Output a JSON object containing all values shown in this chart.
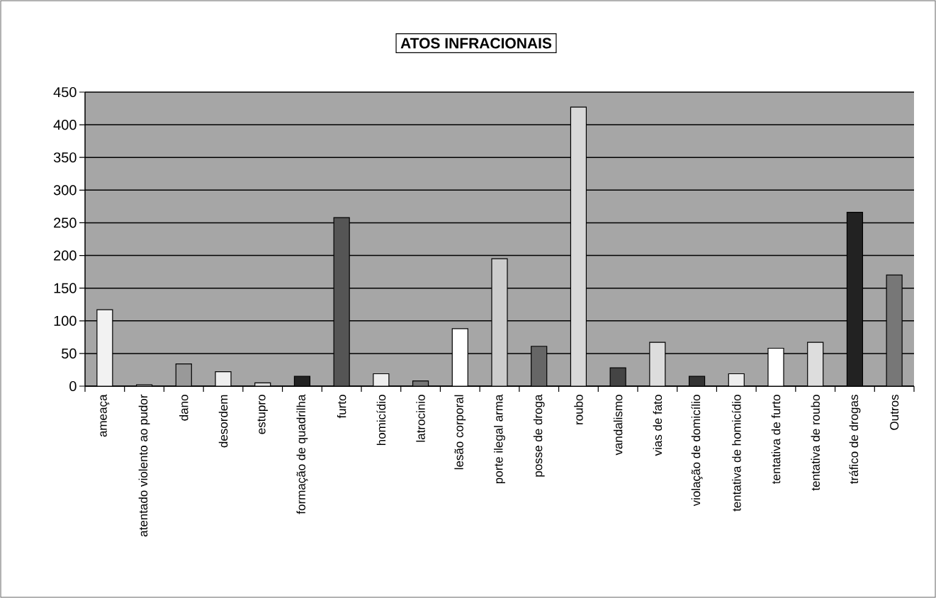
{
  "chart_data": {
    "type": "bar",
    "title": "ATOS INFRACIONAIS",
    "categories": [
      "ameaça",
      "atentado violento ao pudor",
      "dano",
      "desordem",
      "estupro",
      "formação de quadrilha",
      "furto",
      "homicídio",
      "latrocinio",
      "lesão corporal",
      "porte ilegal arma",
      "posse de droga",
      "roubo",
      "vandalismo",
      "vias de fato",
      "violação de domicílio",
      "tentativa de homicídio",
      "tentativa de furto",
      "tentativa de roubo",
      "tráfico de drogas",
      "Outros"
    ],
    "values": [
      117,
      2,
      34,
      22,
      5,
      15,
      258,
      19,
      8,
      88,
      195,
      61,
      427,
      28,
      67,
      15,
      19,
      58,
      67,
      266,
      170
    ],
    "colors": [
      "#f2f2f2",
      "#dddddd",
      "#999999",
      "#eeeeee",
      "#dddddd",
      "#222222",
      "#555555",
      "#eeeeee",
      "#777777",
      "#ffffff",
      "#cccccc",
      "#666666",
      "#d9d9d9",
      "#444444",
      "#dddddd",
      "#333333",
      "#eeeeee",
      "#ffffff",
      "#dddddd",
      "#222222",
      "#777777"
    ],
    "ylim": [
      0,
      450
    ],
    "yticks": [
      0,
      50,
      100,
      150,
      200,
      250,
      300,
      350,
      400,
      450
    ],
    "grid": "y"
  }
}
